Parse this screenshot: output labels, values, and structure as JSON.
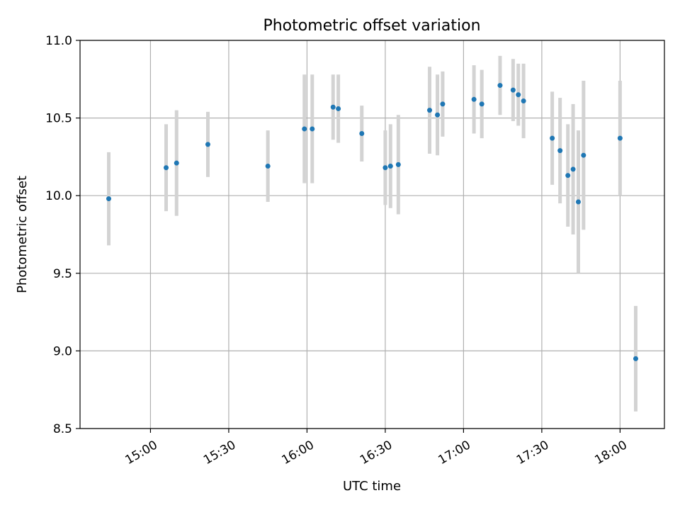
{
  "chart_data": {
    "type": "scatter",
    "title": "Photometric offset variation",
    "xlabel": "UTC time",
    "ylabel": "Photometric offset",
    "x_unit": "UTC time (HH:MM)",
    "xlim": [
      "14:33",
      "18:17"
    ],
    "ylim": [
      8.5,
      11.0
    ],
    "x_ticks": [
      "15:00",
      "15:30",
      "16:00",
      "16:30",
      "17:00",
      "17:30",
      "18:00"
    ],
    "y_ticks": [
      "8.5",
      "9.0",
      "9.5",
      "10.0",
      "10.5",
      "11.0"
    ],
    "grid": true,
    "legend": "none",
    "colors": {
      "point": "#1f77b4",
      "errorbar": "#d3d3d3",
      "grid": "#b0b0b0"
    },
    "series": [
      {
        "points": [
          {
            "x": "14:44",
            "y": 9.98,
            "yerr": 0.3
          },
          {
            "x": "15:06",
            "y": 10.18,
            "yerr": 0.28
          },
          {
            "x": "15:10",
            "y": 10.21,
            "yerr": 0.34
          },
          {
            "x": "15:22",
            "y": 10.33,
            "yerr": 0.21
          },
          {
            "x": "15:45",
            "y": 10.19,
            "yerr": 0.23
          },
          {
            "x": "15:59",
            "y": 10.43,
            "yerr": 0.35
          },
          {
            "x": "16:02",
            "y": 10.43,
            "yerr": 0.35
          },
          {
            "x": "16:10",
            "y": 10.57,
            "yerr": 0.21
          },
          {
            "x": "16:12",
            "y": 10.56,
            "yerr": 0.22
          },
          {
            "x": "16:21",
            "y": 10.4,
            "yerr": 0.18
          },
          {
            "x": "16:30",
            "y": 10.18,
            "yerr": 0.24
          },
          {
            "x": "16:32",
            "y": 10.19,
            "yerr": 0.27
          },
          {
            "x": "16:35",
            "y": 10.2,
            "yerr": 0.32
          },
          {
            "x": "16:47",
            "y": 10.55,
            "yerr": 0.28
          },
          {
            "x": "16:50",
            "y": 10.52,
            "yerr": 0.26
          },
          {
            "x": "16:52",
            "y": 10.59,
            "yerr": 0.21
          },
          {
            "x": "17:04",
            "y": 10.62,
            "yerr": 0.22
          },
          {
            "x": "17:07",
            "y": 10.59,
            "yerr": 0.22
          },
          {
            "x": "17:14",
            "y": 10.71,
            "yerr": 0.19
          },
          {
            "x": "17:19",
            "y": 10.68,
            "yerr": 0.2
          },
          {
            "x": "17:21",
            "y": 10.65,
            "yerr": 0.2
          },
          {
            "x": "17:23",
            "y": 10.61,
            "yerr": 0.24
          },
          {
            "x": "17:34",
            "y": 10.37,
            "yerr": 0.3
          },
          {
            "x": "17:37",
            "y": 10.29,
            "yerr": 0.34
          },
          {
            "x": "17:40",
            "y": 10.13,
            "yerr": 0.33
          },
          {
            "x": "17:42",
            "y": 10.17,
            "yerr": 0.42
          },
          {
            "x": "17:44",
            "y": 9.96,
            "yerr": 0.46
          },
          {
            "x": "17:46",
            "y": 10.26,
            "yerr": 0.48
          },
          {
            "x": "18:00",
            "y": 10.37,
            "yerr": 0.37
          },
          {
            "x": "18:06",
            "y": 8.95,
            "yerr": 0.34
          }
        ]
      }
    ]
  }
}
